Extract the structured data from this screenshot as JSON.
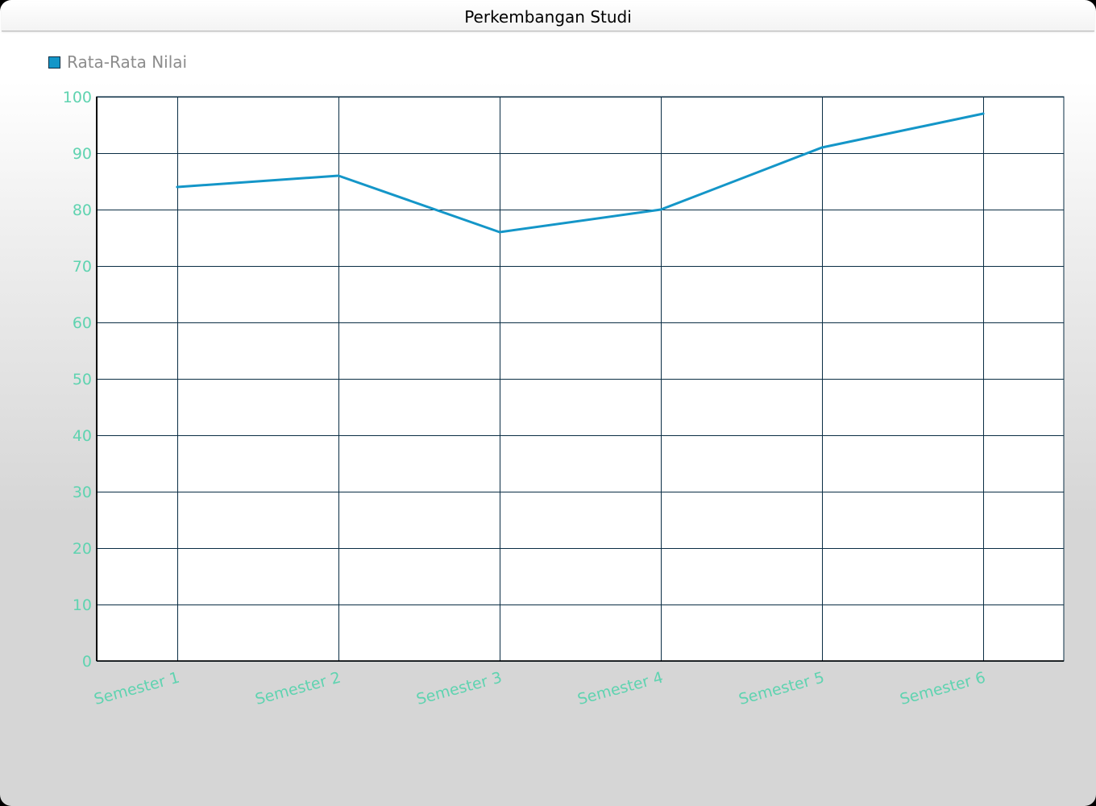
{
  "window": {
    "title": "Perkembangan Studi"
  },
  "chart_data": {
    "type": "line",
    "title": "Perkembangan Studi",
    "xlabel": "",
    "ylabel": "",
    "categories": [
      "Semester 1",
      "Semester 2",
      "Semester 3",
      "Semester 4",
      "Semester 5",
      "Semester 6"
    ],
    "series": [
      {
        "name": "Rata-Rata Nilai",
        "values": [
          84,
          86,
          76,
          80,
          91,
          97
        ],
        "color": "#1496c8"
      }
    ],
    "ylim": [
      0,
      100
    ],
    "yticks": [
      0,
      10,
      20,
      30,
      40,
      50,
      60,
      70,
      80,
      90,
      100
    ],
    "grid": true,
    "legend_position": "top-left",
    "colors": {
      "grid": "#0a2d44",
      "tick_labels": "#5fd3b0",
      "plot_background": "#ffffff"
    }
  }
}
